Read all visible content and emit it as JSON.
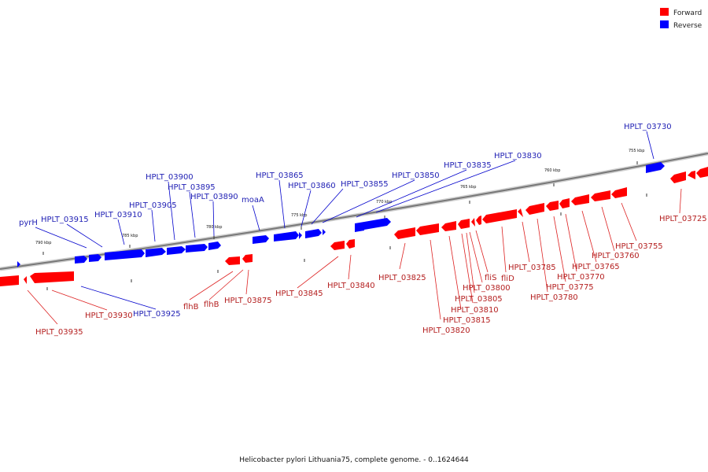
{
  "caption": "Helicobacter pylori Lithuania75, complete genome. - 0..1624644",
  "colors": {
    "forward": "#ff0000",
    "reverse": "#0000ff",
    "axis": "#777777"
  },
  "legend": [
    {
      "label": "Forward",
      "strand": "forward"
    },
    {
      "label": "Reverse",
      "strand": "reverse"
    }
  ],
  "ticks": [
    "790 kbp",
    "785 kbp",
    "780 kbp",
    "775 kbp",
    "770 kbp",
    "765 kbp",
    "760 kbp",
    "755 kbp"
  ],
  "genes_reverse": [
    "pyrH",
    "HPLT_03915",
    "HPLT_03910",
    "HPLT_03905",
    "HPLT_03900",
    "HPLT_03895",
    "HPLT_03890",
    "moaA",
    "HPLT_03865",
    "HPLT_03860",
    "HPLT_03855",
    "HPLT_03850",
    "HPLT_03835",
    "HPLT_03830",
    "HPLT_03730",
    "HPLT_03925"
  ],
  "genes_forward": [
    "HPLT_03935",
    "HPLT_03930",
    "flhB",
    "flhB",
    "HPLT_03875",
    "HPLT_03845",
    "HPLT_03840",
    "HPLT_03825",
    "HPLT_03820",
    "HPLT_03815",
    "HPLT_03810",
    "HPLT_03805",
    "HPLT_03800",
    "fliS",
    "fliD",
    "HPLT_03785",
    "HPLT_03780",
    "HPLT_03775",
    "HPLT_03770",
    "HPLT_03765",
    "HPLT_03760",
    "HPLT_03755",
    "HPLT_03725"
  ]
}
